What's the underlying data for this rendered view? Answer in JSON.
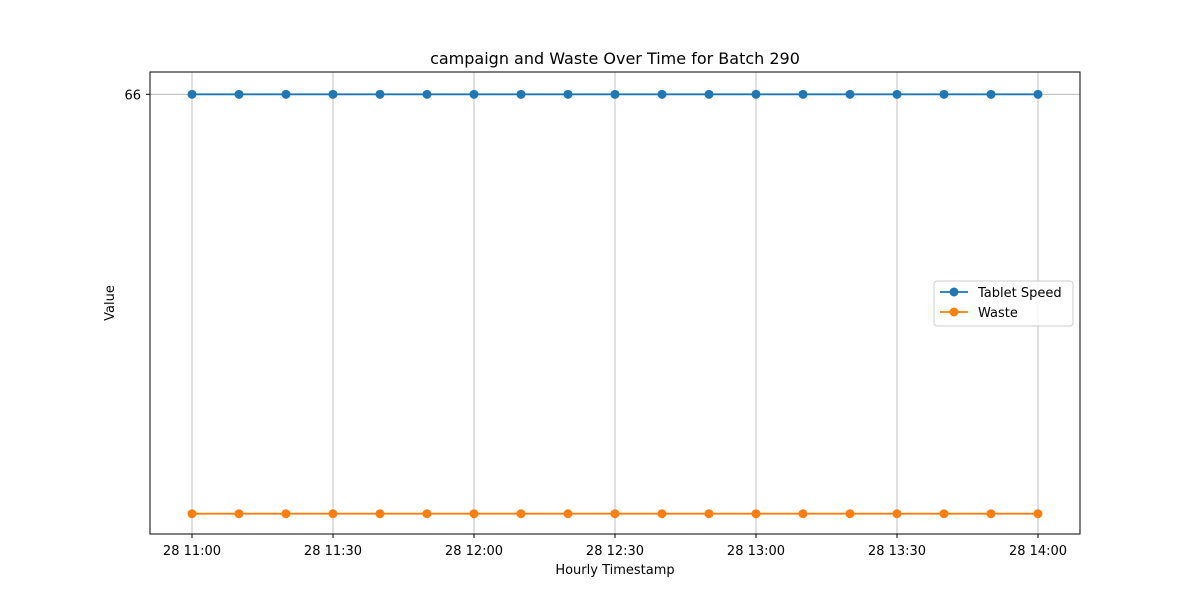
{
  "chart_data": {
    "type": "line",
    "title": "campaign and Waste Over Time for Batch 290",
    "xlabel": "Hourly Timestamp",
    "ylabel": "Value",
    "x": [
      "28 11:00",
      "28 11:10",
      "28 11:20",
      "28 11:30",
      "28 11:40",
      "28 11:50",
      "28 12:00",
      "28 12:10",
      "28 12:20",
      "28 12:30",
      "28 12:40",
      "28 12:50",
      "28 13:00",
      "28 13:10",
      "28 13:20",
      "28 13:30",
      "28 13:40",
      "28 13:50",
      "28 14:00"
    ],
    "x_ticks": [
      "28 11:00",
      "28 11:30",
      "28 12:00",
      "28 12:30",
      "28 13:00",
      "28 13:30",
      "28 14:00"
    ],
    "y_ticks": [
      "66"
    ],
    "ylim": [
      1.0,
      69.3
    ],
    "grid": "x-major",
    "legend_position": "center-right",
    "series": [
      {
        "name": "Tablet Speed",
        "color": "#1f77b4",
        "values": [
          66,
          66,
          66,
          66,
          66,
          66,
          66,
          66,
          66,
          66,
          66,
          66,
          66,
          66,
          66,
          66,
          66,
          66,
          66
        ]
      },
      {
        "name": "Waste",
        "color": "#ff7f0e",
        "values": [
          4,
          4,
          4,
          4,
          4,
          4,
          4,
          4,
          4,
          4,
          4,
          4,
          4,
          4,
          4,
          4,
          4,
          4,
          4
        ]
      }
    ]
  }
}
